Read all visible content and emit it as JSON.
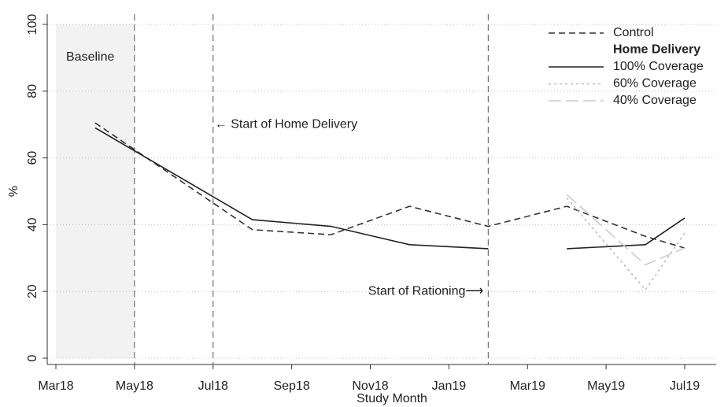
{
  "chart_data": {
    "type": "line",
    "x_label": "Study Month",
    "y_label": "%",
    "xlim": [
      "2018-03",
      "2019-07"
    ],
    "xticks": [
      {
        "value": "2018-03",
        "label": "Mar18"
      },
      {
        "value": "2018-05",
        "label": "May18"
      },
      {
        "value": "2018-07",
        "label": "Jul18"
      },
      {
        "value": "2018-09",
        "label": "Sep18"
      },
      {
        "value": "2018-11",
        "label": "Nov18"
      },
      {
        "value": "2019-01",
        "label": "Jan19"
      },
      {
        "value": "2019-03",
        "label": "Mar19"
      },
      {
        "value": "2019-05",
        "label": "May19"
      },
      {
        "value": "2019-07",
        "label": "Jul19"
      }
    ],
    "ylim": [
      0,
      100
    ],
    "yticks": [
      0,
      20,
      40,
      60,
      80,
      100
    ],
    "grid": true,
    "shaded_region": {
      "x": [
        "2018-03",
        "2018-05"
      ],
      "label": "Baseline",
      "color": "#f2f2f2"
    },
    "reference_lines": [
      "2018-05",
      "2018-07",
      "2019-02"
    ],
    "annotations": [
      {
        "text": "← Start of Home Delivery",
        "x": "2018-07",
        "y": 70
      },
      {
        "text": "Start of Rationing⟶",
        "x": "2019-02",
        "y": 20
      }
    ],
    "legend_position": "top-right",
    "legend_group_title": "Home Delivery",
    "series": [
      {
        "name": "Control",
        "color": "#333333",
        "dash": "8,5",
        "x": [
          "2018-04",
          "2018-08",
          "2018-10",
          "2018-12",
          "2019-02",
          "2019-04",
          "2019-06",
          "2019-07"
        ],
        "values": [
          70.5,
          38.5,
          37,
          45.5,
          39.5,
          45.5,
          36.5,
          33
        ]
      },
      {
        "name": "100% Coverage",
        "color": "#222222",
        "dash": "none",
        "x": [
          "2018-04",
          "2018-08",
          "2018-10",
          "2018-12",
          "2019-02",
          "2019-03",
          "2019-04",
          "2019-06",
          "2019-07"
        ],
        "values": [
          69,
          41.5,
          39.5,
          34,
          32.8,
          null,
          32.8,
          34,
          42
        ]
      },
      {
        "name": "60% Coverage",
        "color": "#bbbbbb",
        "dash": "3,4",
        "x": [
          "2019-04",
          "2019-06",
          "2019-07"
        ],
        "values": [
          48,
          20.5,
          37.5
        ]
      },
      {
        "name": "40% Coverage",
        "color": "#cccccc",
        "dash": "16,6",
        "x": [
          "2019-04",
          "2019-06",
          "2019-07"
        ],
        "values": [
          49,
          28,
          33
        ]
      }
    ]
  }
}
